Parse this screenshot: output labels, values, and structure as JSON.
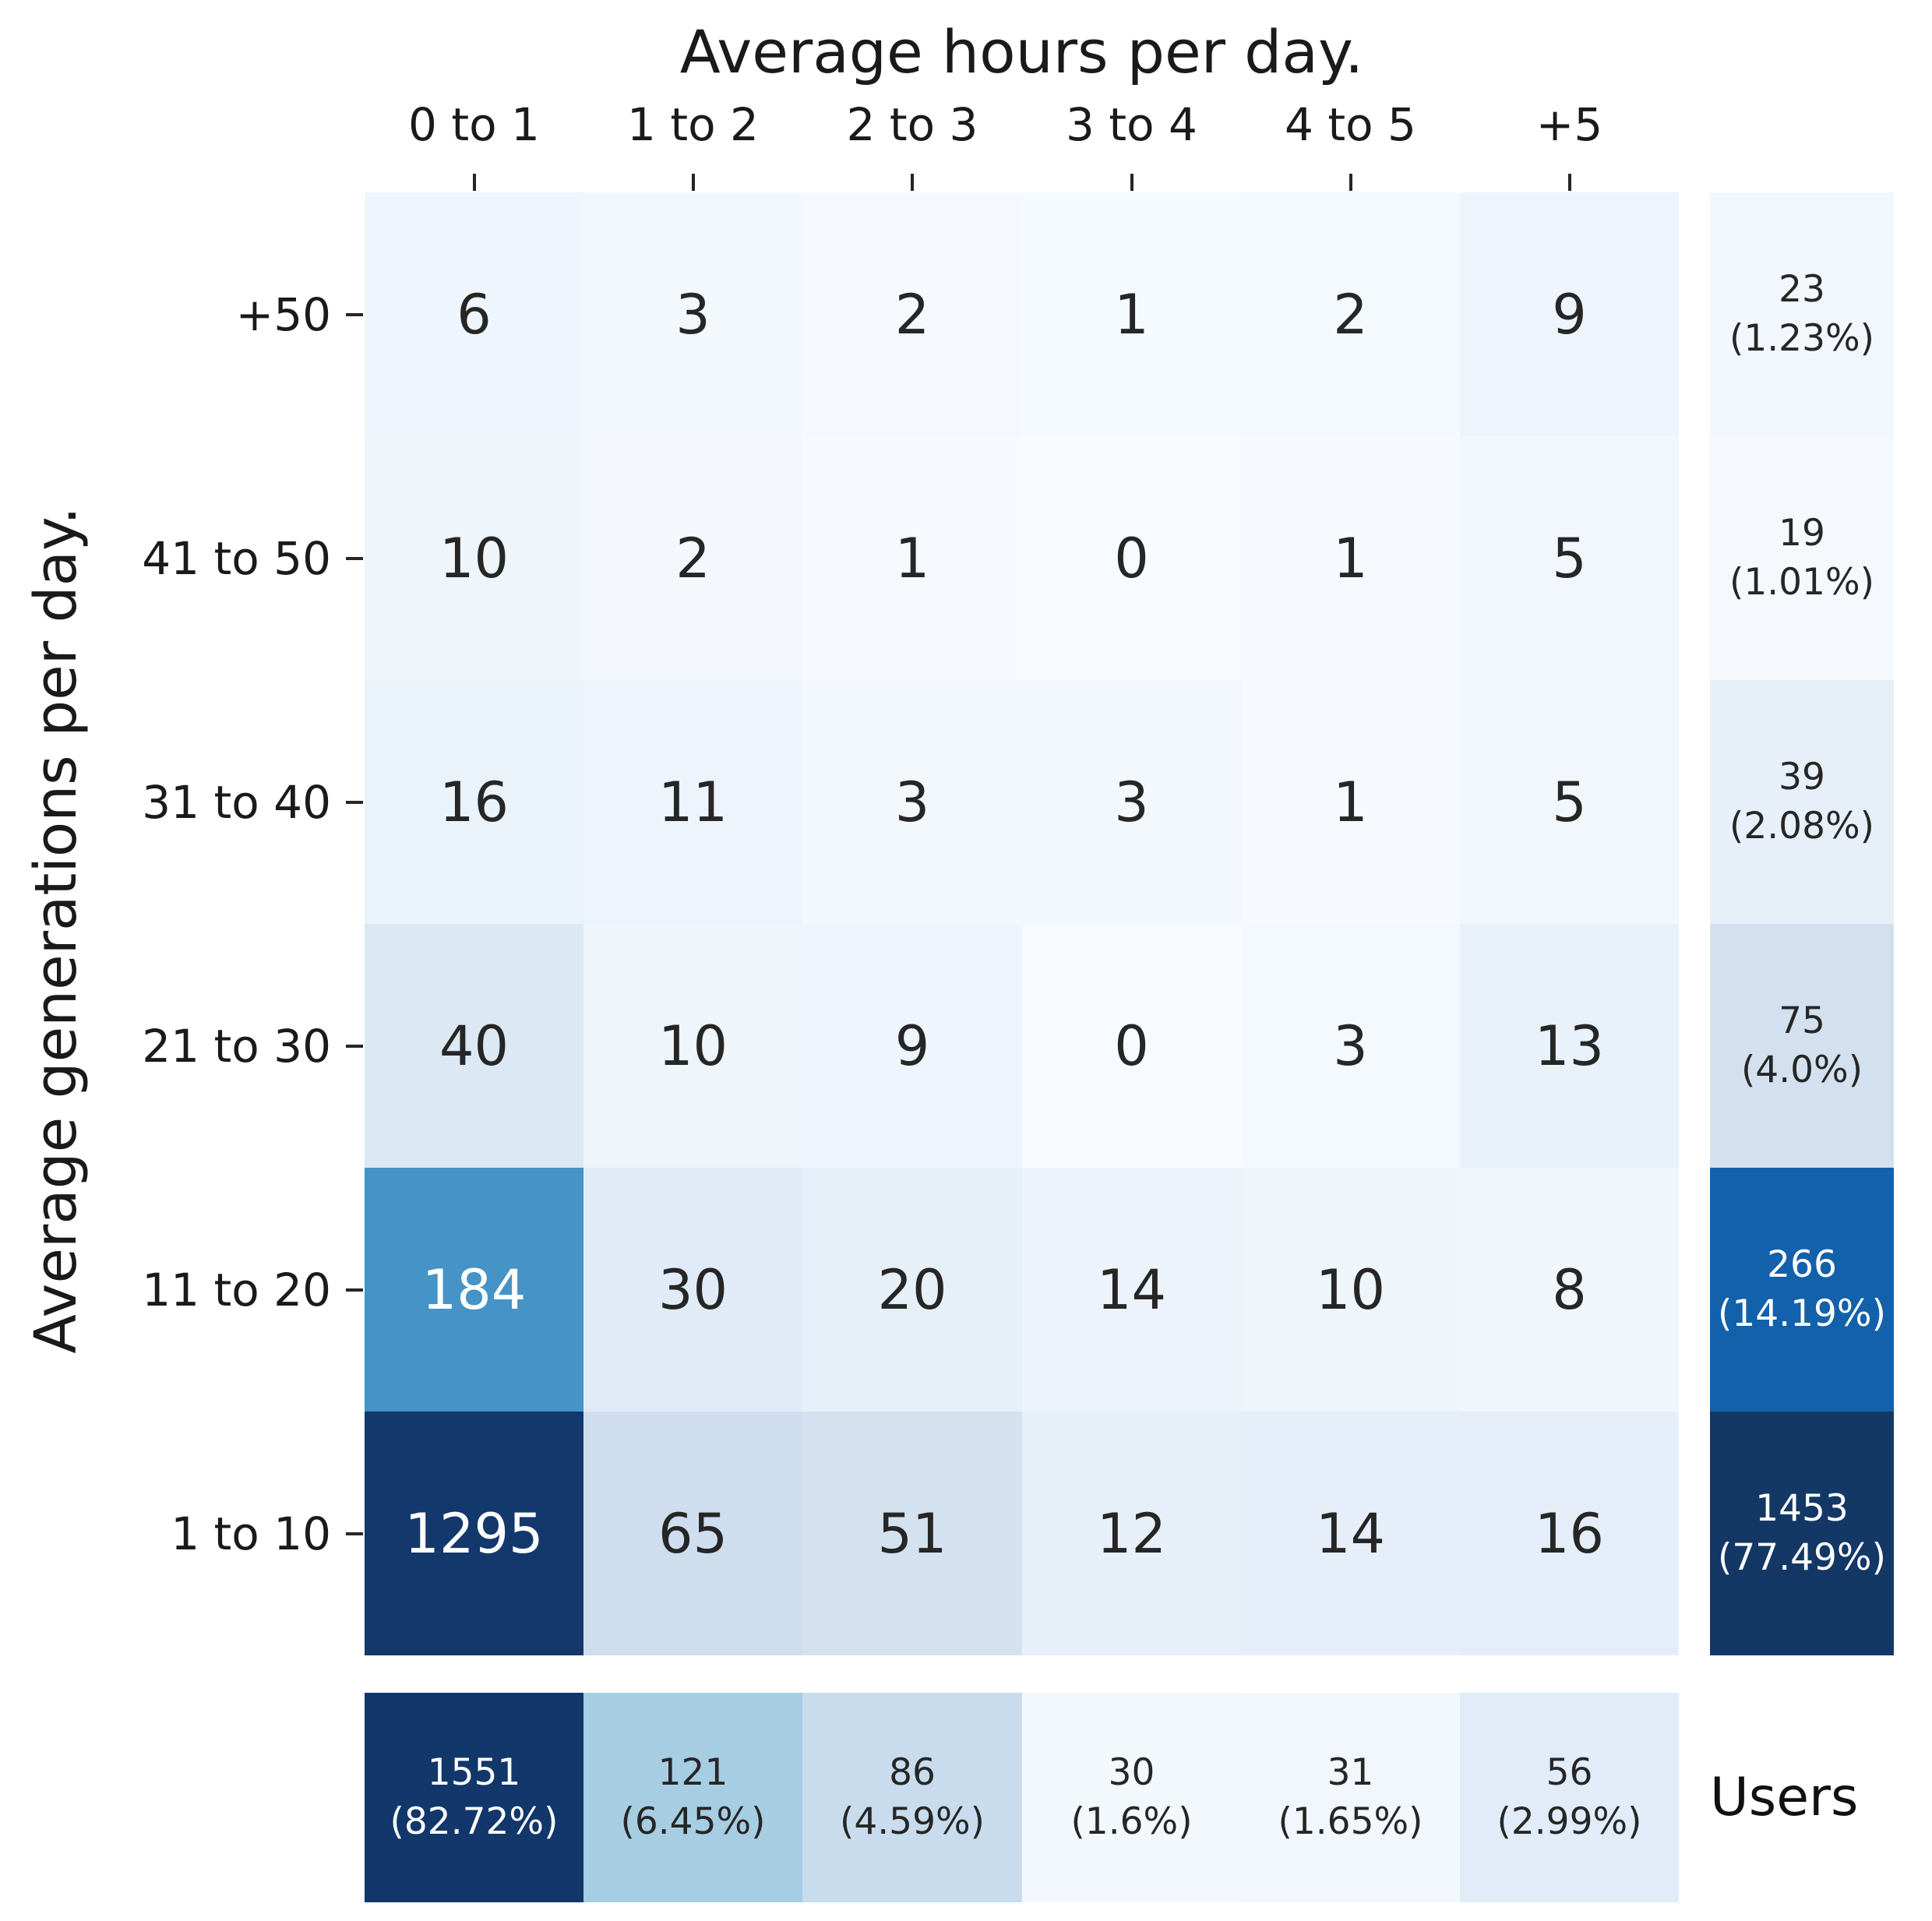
{
  "figure": {
    "background": "#ffffff",
    "text_color": "#1a1a1a",
    "users_label": "Users"
  },
  "chart_data": {
    "type": "heatmap",
    "title": "Average hours per day.",
    "ylabel": "Average generations per day.",
    "columns": [
      "0 to 1",
      "1 to 2",
      "2 to 3",
      "3 to 4",
      "4 to 5",
      "+5"
    ],
    "rows": [
      "+50",
      "41 to 50",
      "31 to 40",
      "21 to 30",
      "11 to 20",
      "1 to 10"
    ],
    "values": [
      [
        6,
        3,
        2,
        1,
        2,
        9
      ],
      [
        10,
        2,
        1,
        0,
        1,
        5
      ],
      [
        16,
        11,
        3,
        3,
        1,
        5
      ],
      [
        40,
        10,
        9,
        0,
        3,
        13
      ],
      [
        184,
        30,
        20,
        14,
        10,
        8
      ],
      [
        1295,
        65,
        51,
        12,
        14,
        16
      ]
    ],
    "cell_colors": [
      [
        "#eff5fc",
        "#f3f8fd",
        "#f5f9fe",
        "#f5fafe",
        "#f4f9fd",
        "#edf4fb"
      ],
      [
        "#eef5fb",
        "#f4f8fd",
        "#f6fafe",
        "#f7fbff",
        "#f6fafe",
        "#f2f7fd"
      ],
      [
        "#eaf2fa",
        "#edf4fb",
        "#f3f8fd",
        "#f3f8fd",
        "#f6fafe",
        "#f2f7fd"
      ],
      [
        "#dce9f5",
        "#eef5fb",
        "#eff5fc",
        "#f7fbff",
        "#f4f9fd",
        "#e9f1fa"
      ],
      [
        "#4593c7",
        "#e0ebf7",
        "#e6f0f9",
        "#ecf3fa",
        "#eef5fb",
        "#f0f6fc"
      ],
      [
        "#13386b",
        "#cfdeee",
        "#d4e2f0",
        "#e7f0f9",
        "#e6eff9",
        "#e5eef8"
      ]
    ],
    "row_totals": [
      {
        "count": "23",
        "pct": "(1.23%)",
        "color": "#f2f7fd"
      },
      {
        "count": "19",
        "pct": "(1.01%)",
        "color": "#f5f9fe"
      },
      {
        "count": "39",
        "pct": "(2.08%)",
        "color": "#e7eff8"
      },
      {
        "count": "75",
        "pct": "(4.0%)",
        "color": "#d2e0ef"
      },
      {
        "count": "266",
        "pct": "(14.19%)",
        "color": "#1361aa"
      },
      {
        "count": "1453",
        "pct": "(77.49%)",
        "color": "#133866"
      }
    ],
    "col_totals": [
      {
        "count": "1551",
        "pct": "(82.72%)",
        "color": "#12376b"
      },
      {
        "count": "121",
        "pct": "(6.45%)",
        "color": "#a7cde3"
      },
      {
        "count": "86",
        "pct": "(4.59%)",
        "color": "#c8dcee"
      },
      {
        "count": "30",
        "pct": "(1.6%)",
        "color": "#f3f8fd"
      },
      {
        "count": "31",
        "pct": "(1.65%)",
        "color": "#f2f7fd"
      },
      {
        "count": "56",
        "pct": "(2.99%)",
        "color": "#e1ecf8"
      }
    ],
    "layout_hints": {
      "row_totals_position": "right",
      "col_totals_position": "bottom",
      "gridlines": "off",
      "colormap": "Blues"
    }
  }
}
